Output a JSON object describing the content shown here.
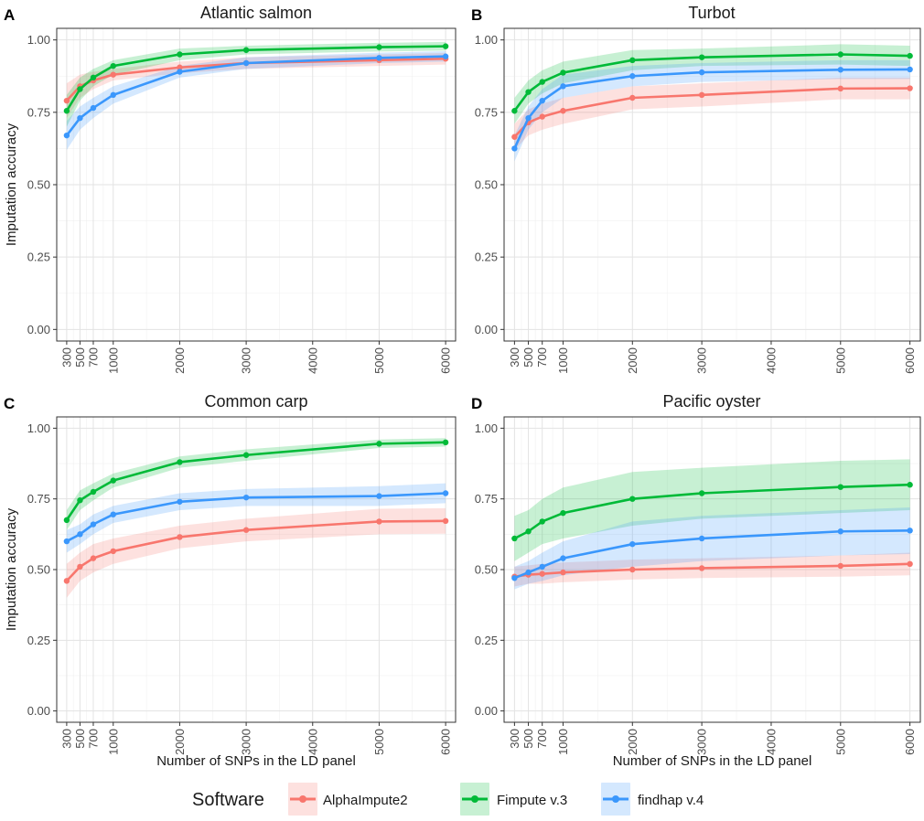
{
  "figure": {
    "legend": {
      "title": "Software",
      "entries": [
        {
          "name": "AlphaImpute2",
          "color": "#F8766D"
        },
        {
          "name": "Fimpute v.3",
          "color": "#00BA38"
        },
        {
          "name": "findhap v.4",
          "color": "#3A97FC"
        }
      ]
    }
  },
  "chart_data": [
    {
      "panel": "A",
      "type": "line",
      "title": "Atlantic salmon",
      "xlabel": "",
      "ylabel": "Imputation accuracy",
      "x": [
        300,
        500,
        700,
        1000,
        2000,
        3000,
        5000,
        6000
      ],
      "xticks": [
        300,
        500,
        700,
        1000,
        2000,
        3000,
        4000,
        5000,
        6000
      ],
      "yticks": [
        "0.00",
        "0.25",
        "0.50",
        "0.75",
        "1.00"
      ],
      "xlim": [
        150,
        6150
      ],
      "ylim": [
        -0.04,
        1.04
      ],
      "series": [
        {
          "name": "AlphaImpute2",
          "color": "#F8766D",
          "values": [
            0.79,
            0.84,
            0.86,
            0.88,
            0.905,
            0.92,
            0.93,
            0.935
          ],
          "lower": [
            0.73,
            0.8,
            0.83,
            0.86,
            0.885,
            0.9,
            0.91,
            0.915
          ],
          "upper": [
            0.85,
            0.88,
            0.89,
            0.9,
            0.925,
            0.94,
            0.95,
            0.955
          ]
        },
        {
          "name": "Fimpute v.3",
          "color": "#00BA38",
          "values": [
            0.755,
            0.83,
            0.87,
            0.91,
            0.95,
            0.965,
            0.975,
            0.978
          ],
          "lower": [
            0.7,
            0.79,
            0.84,
            0.88,
            0.93,
            0.95,
            0.96,
            0.963
          ],
          "upper": [
            0.81,
            0.87,
            0.9,
            0.93,
            0.97,
            0.98,
            0.99,
            0.993
          ]
        },
        {
          "name": "findhap v.4",
          "color": "#3A97FC",
          "values": [
            0.67,
            0.73,
            0.765,
            0.81,
            0.89,
            0.92,
            0.938,
            0.943
          ],
          "lower": [
            0.62,
            0.69,
            0.73,
            0.78,
            0.87,
            0.9,
            0.92,
            0.925
          ],
          "upper": [
            0.72,
            0.77,
            0.8,
            0.84,
            0.91,
            0.94,
            0.956,
            0.961
          ]
        }
      ]
    },
    {
      "panel": "B",
      "type": "line",
      "title": "Turbot",
      "xlabel": "",
      "ylabel": "",
      "x": [
        300,
        500,
        700,
        1000,
        2000,
        3000,
        5000,
        6000
      ],
      "xticks": [
        300,
        500,
        700,
        1000,
        2000,
        3000,
        4000,
        5000,
        6000
      ],
      "yticks": [
        "0.00",
        "0.25",
        "0.50",
        "0.75",
        "1.00"
      ],
      "xlim": [
        150,
        6150
      ],
      "ylim": [
        -0.04,
        1.04
      ],
      "series": [
        {
          "name": "AlphaImpute2",
          "color": "#F8766D",
          "values": [
            0.665,
            0.715,
            0.735,
            0.755,
            0.8,
            0.81,
            0.832,
            0.833
          ],
          "lower": [
            0.62,
            0.67,
            0.69,
            0.71,
            0.76,
            0.77,
            0.795,
            0.795
          ],
          "upper": [
            0.71,
            0.76,
            0.78,
            0.8,
            0.84,
            0.85,
            0.87,
            0.87
          ]
        },
        {
          "name": "Fimpute v.3",
          "color": "#00BA38",
          "values": [
            0.755,
            0.82,
            0.855,
            0.887,
            0.93,
            0.94,
            0.95,
            0.945
          ],
          "lower": [
            0.71,
            0.78,
            0.815,
            0.85,
            0.895,
            0.91,
            0.915,
            0.91
          ],
          "upper": [
            0.8,
            0.86,
            0.895,
            0.925,
            0.965,
            0.97,
            0.985,
            0.98
          ]
        },
        {
          "name": "findhap v.4",
          "color": "#3A97FC",
          "values": [
            0.625,
            0.73,
            0.79,
            0.84,
            0.875,
            0.888,
            0.897,
            0.898
          ],
          "lower": [
            0.58,
            0.69,
            0.75,
            0.8,
            0.84,
            0.855,
            0.865,
            0.865
          ],
          "upper": [
            0.67,
            0.77,
            0.83,
            0.88,
            0.91,
            0.92,
            0.93,
            0.93
          ]
        }
      ]
    },
    {
      "panel": "C",
      "type": "line",
      "title": "Common carp",
      "xlabel": "Number of SNPs in the LD panel",
      "ylabel": "Imputation accuracy",
      "x": [
        300,
        500,
        700,
        1000,
        2000,
        3000,
        5000,
        6000
      ],
      "xticks": [
        300,
        500,
        700,
        1000,
        2000,
        3000,
        4000,
        5000,
        6000
      ],
      "yticks": [
        "0.00",
        "0.25",
        "0.50",
        "0.75",
        "1.00"
      ],
      "xlim": [
        150,
        6150
      ],
      "ylim": [
        -0.04,
        1.04
      ],
      "series": [
        {
          "name": "AlphaImpute2",
          "color": "#F8766D",
          "values": [
            0.46,
            0.51,
            0.54,
            0.565,
            0.615,
            0.64,
            0.67,
            0.672
          ],
          "lower": [
            0.4,
            0.46,
            0.49,
            0.52,
            0.575,
            0.6,
            0.625,
            0.627
          ],
          "upper": [
            0.52,
            0.56,
            0.59,
            0.61,
            0.655,
            0.68,
            0.715,
            0.717
          ]
        },
        {
          "name": "Fimpute v.3",
          "color": "#00BA38",
          "values": [
            0.675,
            0.745,
            0.775,
            0.815,
            0.88,
            0.905,
            0.945,
            0.95
          ],
          "lower": [
            0.64,
            0.71,
            0.745,
            0.79,
            0.86,
            0.885,
            0.93,
            0.935
          ],
          "upper": [
            0.71,
            0.78,
            0.805,
            0.84,
            0.9,
            0.925,
            0.96,
            0.965
          ]
        },
        {
          "name": "findhap v.4",
          "color": "#3A97FC",
          "values": [
            0.6,
            0.625,
            0.66,
            0.695,
            0.74,
            0.755,
            0.76,
            0.77
          ],
          "lower": [
            0.56,
            0.59,
            0.625,
            0.665,
            0.71,
            0.725,
            0.725,
            0.735
          ],
          "upper": [
            0.64,
            0.66,
            0.695,
            0.725,
            0.77,
            0.785,
            0.795,
            0.805
          ]
        }
      ]
    },
    {
      "panel": "D",
      "type": "line",
      "title": "Pacific oyster",
      "xlabel": "Number of SNPs in the LD panel",
      "ylabel": "",
      "x": [
        300,
        500,
        700,
        1000,
        2000,
        3000,
        5000,
        6000
      ],
      "xticks": [
        300,
        500,
        700,
        1000,
        2000,
        3000,
        4000,
        5000,
        6000
      ],
      "yticks": [
        "0.00",
        "0.25",
        "0.50",
        "0.75",
        "1.00"
      ],
      "xlim": [
        150,
        6150
      ],
      "ylim": [
        -0.04,
        1.04
      ],
      "series": [
        {
          "name": "AlphaImpute2",
          "color": "#F8766D",
          "values": [
            0.475,
            0.482,
            0.485,
            0.49,
            0.5,
            0.505,
            0.513,
            0.52
          ],
          "lower": [
            0.44,
            0.45,
            0.45,
            0.455,
            0.465,
            0.47,
            0.475,
            0.48
          ],
          "upper": [
            0.51,
            0.515,
            0.52,
            0.525,
            0.535,
            0.54,
            0.55,
            0.56
          ]
        },
        {
          "name": "Fimpute v.3",
          "color": "#00BA38",
          "values": [
            0.61,
            0.635,
            0.67,
            0.7,
            0.75,
            0.77,
            0.792,
            0.8
          ],
          "lower": [
            0.53,
            0.56,
            0.59,
            0.61,
            0.655,
            0.68,
            0.7,
            0.71
          ],
          "upper": [
            0.69,
            0.71,
            0.75,
            0.79,
            0.845,
            0.86,
            0.885,
            0.89
          ]
        },
        {
          "name": "findhap v.4",
          "color": "#3A97FC",
          "values": [
            0.47,
            0.49,
            0.51,
            0.54,
            0.59,
            0.61,
            0.635,
            0.638
          ],
          "lower": [
            0.43,
            0.45,
            0.46,
            0.48,
            0.51,
            0.53,
            0.55,
            0.555
          ],
          "upper": [
            0.51,
            0.53,
            0.56,
            0.6,
            0.67,
            0.69,
            0.71,
            0.72
          ]
        }
      ]
    }
  ]
}
